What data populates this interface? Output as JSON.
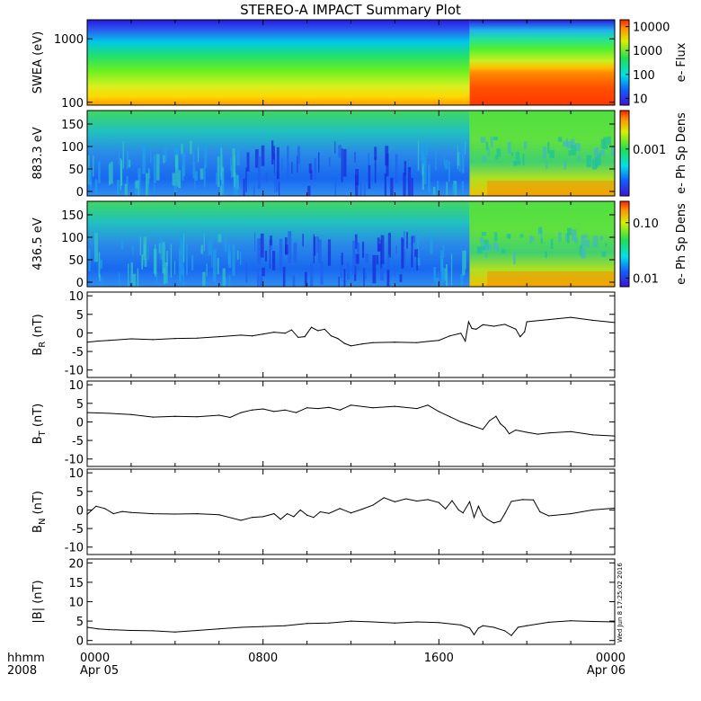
{
  "chart_data": {
    "type": "line",
    "title": "STEREO-A IMPACT Summary Plot",
    "time_axis": {
      "corner_labels": [
        "hhmm",
        "2008"
      ],
      "ticks": [
        {
          "hhmm": "0000",
          "date": "Apr 05"
        },
        {
          "hhmm": "0800",
          "date": ""
        },
        {
          "hhmm": "1600",
          "date": ""
        },
        {
          "hhmm": "0000",
          "date": "Apr 06"
        }
      ],
      "range_hours": [
        0,
        24
      ]
    },
    "panels": [
      {
        "id": "swea",
        "kind": "spectrogram",
        "ylabel": "SWEA (eV)",
        "yscale": "log",
        "ylim": [
          90,
          2000
        ],
        "yticks": [
          "1000",
          "100"
        ],
        "colorbar": {
          "label": "e- Flux",
          "scale": "log",
          "ticks": [
            "10000",
            "1000",
            "100",
            "10"
          ]
        },
        "transition_hour": 17.4
      },
      {
        "id": "pad883",
        "kind": "spectrogram",
        "ylabel": "883.3 eV",
        "ylim": [
          -10,
          180
        ],
        "yticks": [
          "150",
          "100",
          "50",
          "0"
        ],
        "colorbar": {
          "label": "e- Ph Sp Dens",
          "scale": "log",
          "ticks": [
            "0.001"
          ]
        },
        "transition_hour": 17.4
      },
      {
        "id": "pad436",
        "kind": "spectrogram",
        "ylabel": "436.5 eV",
        "ylim": [
          -10,
          180
        ],
        "yticks": [
          "150",
          "100",
          "50",
          "0"
        ],
        "colorbar": {
          "label": "e- Ph Sp Dens",
          "scale": "log",
          "ticks": [
            "0.10",
            "0.01"
          ]
        },
        "transition_hour": 17.4
      },
      {
        "id": "br",
        "kind": "line",
        "ylabel_main": "B",
        "ylabel_sub": "R",
        "ylabel_unit": " (nT)",
        "ylim": [
          -12,
          11
        ],
        "yticks": [
          "10",
          "5",
          "0",
          "-5",
          "-10"
        ],
        "points": [
          [
            0,
            -2.5
          ],
          [
            0.5,
            -2.2
          ],
          [
            1,
            -2.0
          ],
          [
            2,
            -1.6
          ],
          [
            3,
            -1.8
          ],
          [
            4,
            -1.5
          ],
          [
            5,
            -1.4
          ],
          [
            6,
            -1.0
          ],
          [
            7,
            -0.6
          ],
          [
            7.5,
            -0.8
          ],
          [
            8,
            -0.3
          ],
          [
            8.5,
            0.2
          ],
          [
            9,
            -0.1
          ],
          [
            9.3,
            0.8
          ],
          [
            9.6,
            -1.2
          ],
          [
            9.9,
            -1.0
          ],
          [
            10.2,
            1.5
          ],
          [
            10.5,
            0.6
          ],
          [
            10.8,
            1.0
          ],
          [
            11.1,
            -0.8
          ],
          [
            11.4,
            -1.5
          ],
          [
            11.7,
            -2.8
          ],
          [
            12,
            -3.5
          ],
          [
            12.5,
            -3.0
          ],
          [
            13,
            -2.6
          ],
          [
            14,
            -2.5
          ],
          [
            15,
            -2.6
          ],
          [
            15.5,
            -2.3
          ],
          [
            16,
            -2.0
          ],
          [
            16.5,
            -0.8
          ],
          [
            17,
            -0.1
          ],
          [
            17.2,
            -2.2
          ],
          [
            17.35,
            3.0
          ],
          [
            17.5,
            1.2
          ],
          [
            17.7,
            1.0
          ],
          [
            18,
            2.2
          ],
          [
            18.5,
            1.8
          ],
          [
            19,
            2.3
          ],
          [
            19.5,
            1.0
          ],
          [
            19.7,
            -1.0
          ],
          [
            19.9,
            0.3
          ],
          [
            20,
            3.0
          ],
          [
            21,
            3.6
          ],
          [
            22,
            4.2
          ],
          [
            23,
            3.4
          ],
          [
            24,
            2.8
          ]
        ]
      },
      {
        "id": "bt",
        "kind": "line",
        "ylabel_main": "B",
        "ylabel_sub": "T",
        "ylabel_unit": " (nT)",
        "ylim": [
          -12,
          11
        ],
        "yticks": [
          "10",
          "5",
          "0",
          "-5",
          "-10"
        ],
        "points": [
          [
            0,
            2.5
          ],
          [
            1,
            2.3
          ],
          [
            2,
            2.0
          ],
          [
            3,
            1.3
          ],
          [
            4,
            1.5
          ],
          [
            5,
            1.4
          ],
          [
            6,
            1.8
          ],
          [
            6.5,
            1.2
          ],
          [
            7,
            2.5
          ],
          [
            7.5,
            3.2
          ],
          [
            8,
            3.5
          ],
          [
            8.5,
            2.8
          ],
          [
            9,
            3.2
          ],
          [
            9.5,
            2.5
          ],
          [
            10,
            3.8
          ],
          [
            10.5,
            3.6
          ],
          [
            11,
            3.9
          ],
          [
            11.5,
            3.2
          ],
          [
            12,
            4.5
          ],
          [
            13,
            3.8
          ],
          [
            14,
            4.2
          ],
          [
            15,
            3.6
          ],
          [
            15.5,
            4.5
          ],
          [
            16,
            2.8
          ],
          [
            16.5,
            1.4
          ],
          [
            17,
            0.0
          ],
          [
            17.5,
            -1.0
          ],
          [
            18,
            -2.0
          ],
          [
            18.3,
            0.3
          ],
          [
            18.6,
            1.5
          ],
          [
            18.8,
            -0.5
          ],
          [
            19,
            -1.5
          ],
          [
            19.2,
            -3.2
          ],
          [
            19.5,
            -2.2
          ],
          [
            20,
            -2.8
          ],
          [
            20.5,
            -3.3
          ],
          [
            21,
            -3.0
          ],
          [
            22,
            -2.6
          ],
          [
            23,
            -3.5
          ],
          [
            24,
            -3.8
          ]
        ]
      },
      {
        "id": "bn",
        "kind": "line",
        "ylabel_main": "B",
        "ylabel_sub": "N",
        "ylabel_unit": " (nT)",
        "ylim": [
          -12,
          11
        ],
        "yticks": [
          "10",
          "5",
          "0",
          "-5",
          "-10"
        ],
        "points": [
          [
            0,
            -1.2
          ],
          [
            0.4,
            1.0
          ],
          [
            0.8,
            0.4
          ],
          [
            1.2,
            -1.0
          ],
          [
            1.6,
            -0.4
          ],
          [
            2,
            -0.7
          ],
          [
            3,
            -1.0
          ],
          [
            4,
            -1.1
          ],
          [
            5,
            -1.0
          ],
          [
            6,
            -1.3
          ],
          [
            7,
            -2.8
          ],
          [
            7.5,
            -2.0
          ],
          [
            8,
            -1.8
          ],
          [
            8.5,
            -1.0
          ],
          [
            8.8,
            -2.5
          ],
          [
            9.1,
            -1.0
          ],
          [
            9.4,
            -1.8
          ],
          [
            9.7,
            0.0
          ],
          [
            10,
            -1.4
          ],
          [
            10.3,
            -2.0
          ],
          [
            10.6,
            -0.5
          ],
          [
            11,
            -0.9
          ],
          [
            11.5,
            0.4
          ],
          [
            12,
            -0.8
          ],
          [
            12.5,
            0.2
          ],
          [
            13,
            1.3
          ],
          [
            13.5,
            3.3
          ],
          [
            14,
            2.2
          ],
          [
            14.5,
            3.0
          ],
          [
            15,
            2.4
          ],
          [
            15.5,
            2.8
          ],
          [
            16,
            2.0
          ],
          [
            16.3,
            0.3
          ],
          [
            16.6,
            2.5
          ],
          [
            16.9,
            0.0
          ],
          [
            17.1,
            -0.8
          ],
          [
            17.4,
            2.2
          ],
          [
            17.6,
            -2.0
          ],
          [
            17.8,
            1.0
          ],
          [
            18,
            -1.5
          ],
          [
            18.2,
            -2.5
          ],
          [
            18.5,
            -3.5
          ],
          [
            18.8,
            -3.0
          ],
          [
            19,
            -1.0
          ],
          [
            19.3,
            2.3
          ],
          [
            19.8,
            2.8
          ],
          [
            20.3,
            2.7
          ],
          [
            20.6,
            -0.5
          ],
          [
            21,
            -1.6
          ],
          [
            22,
            -1.0
          ],
          [
            23,
            0.0
          ],
          [
            24,
            0.5
          ]
        ]
      },
      {
        "id": "bmag",
        "kind": "line",
        "ylabel_main": "|B| (nT)",
        "ylim": [
          -1,
          21
        ],
        "yticks": [
          "20",
          "15",
          "10",
          "5",
          "0"
        ],
        "points": [
          [
            0,
            3.4
          ],
          [
            0.5,
            3.0
          ],
          [
            1,
            2.8
          ],
          [
            2,
            2.6
          ],
          [
            3,
            2.5
          ],
          [
            4,
            2.2
          ],
          [
            5,
            2.6
          ],
          [
            6,
            3.0
          ],
          [
            7,
            3.4
          ],
          [
            8,
            3.6
          ],
          [
            9,
            3.8
          ],
          [
            10,
            4.4
          ],
          [
            11,
            4.5
          ],
          [
            12,
            5.0
          ],
          [
            13,
            4.8
          ],
          [
            14,
            4.5
          ],
          [
            15,
            4.8
          ],
          [
            16,
            4.6
          ],
          [
            17,
            4.0
          ],
          [
            17.4,
            3.2
          ],
          [
            17.6,
            1.5
          ],
          [
            17.8,
            3.2
          ],
          [
            18,
            3.8
          ],
          [
            18.5,
            3.4
          ],
          [
            19,
            2.5
          ],
          [
            19.3,
            1.3
          ],
          [
            19.6,
            3.4
          ],
          [
            20,
            3.8
          ],
          [
            21,
            4.7
          ],
          [
            22,
            5.1
          ],
          [
            23,
            4.9
          ],
          [
            24,
            4.8
          ]
        ]
      }
    ],
    "timestamp": "Wed Jun 8 17:25:02 2016"
  }
}
